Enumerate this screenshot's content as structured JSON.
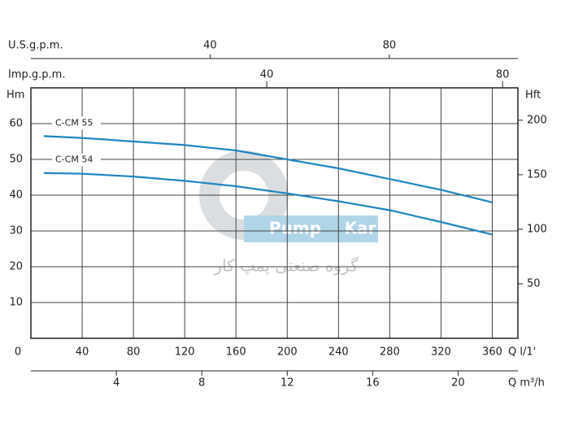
{
  "chart_data": {
    "type": "line",
    "x_label": "Q l/1'",
    "y_label": "Hm",
    "y2_label": "Hft",
    "x": [
      10,
      40,
      80,
      120,
      160,
      200,
      240,
      280,
      320,
      360
    ],
    "series": [
      {
        "name": "C-CM 55",
        "color": "#1f86c0",
        "values": [
          56.5,
          56,
          55,
          54,
          52.5,
          50,
          47.5,
          44.5,
          41.5,
          38
        ]
      },
      {
        "name": "C-CM 54",
        "color": "#1f86c0",
        "values": [
          46.2,
          46,
          45.2,
          44,
          42.5,
          40.5,
          38.3,
          35.8,
          32.5,
          29
        ]
      }
    ],
    "xlim": [
      0,
      380
    ],
    "xticks": [
      0,
      40,
      80,
      120,
      160,
      200,
      240,
      280,
      320,
      360
    ],
    "ylim": [
      0,
      70
    ],
    "yticks": [
      10,
      20,
      30,
      40,
      50,
      60
    ],
    "y2lim": [
      0,
      229.7
    ],
    "y2ticks": [
      50,
      100,
      150,
      200
    ],
    "top_axes": [
      {
        "label": "U.S.g.p.m.",
        "lim": [
          0,
          108.7
        ],
        "ticks": [
          40,
          80
        ]
      },
      {
        "label": "Imp.g.p.m.",
        "lim": [
          0,
          82.6
        ],
        "ticks": [
          40,
          80
        ]
      }
    ],
    "bottom_axis2": {
      "label": "Q m³/h",
      "lim": [
        0,
        22.8
      ],
      "ticks": [
        4,
        8,
        12,
        16,
        20
      ]
    },
    "grid": true,
    "watermark": {
      "brand_left": "Pump",
      "brand_right": "Kar",
      "company": "گروه صنعتی پمپ کار"
    }
  }
}
